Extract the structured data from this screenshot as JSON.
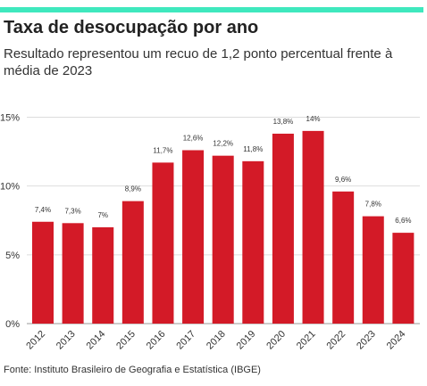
{
  "header": {
    "accent_color": "#3fe8be",
    "title": "Taxa de desocupação por ano",
    "subtitle": "Resultado representou um recuo de 1,2 ponto percentual frente à média de 2023"
  },
  "footer": {
    "source": "Fonte: Instituto Brasileiro de Geografia e Estatística (IBGE)"
  },
  "chart_data": {
    "type": "bar",
    "title": "Taxa de desocupação por ano",
    "xlabel": "",
    "ylabel": "",
    "categories": [
      "2012",
      "2013",
      "2014",
      "2015",
      "2016",
      "2017",
      "2018",
      "2019",
      "2020",
      "2021",
      "2022",
      "2023",
      "2024"
    ],
    "values": [
      7.4,
      7.3,
      7.0,
      8.9,
      11.7,
      12.6,
      12.2,
      11.8,
      13.8,
      14.0,
      9.6,
      7.8,
      6.6
    ],
    "data_labels": [
      "7,4%",
      "7,3%",
      "7%",
      "8,9%",
      "11,7%",
      "12,6%",
      "12,2%",
      "11,8%",
      "13,8%",
      "14%",
      "9,6%",
      "7,8%",
      "6,6%"
    ],
    "ylim": [
      0,
      16
    ],
    "yticks": [
      0,
      5,
      10,
      15
    ],
    "ytick_labels": [
      "0%",
      "5%",
      "10%",
      "15%"
    ],
    "grid": true,
    "bar_color": "#d31a27"
  }
}
